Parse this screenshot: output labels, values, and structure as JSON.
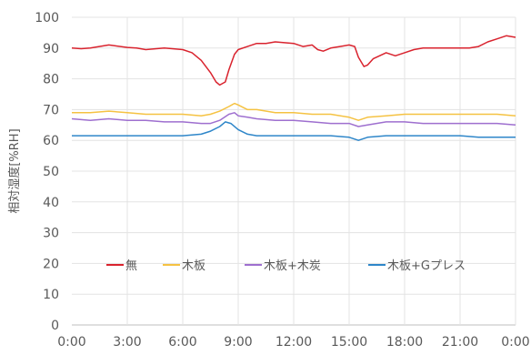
{
  "chart_data": {
    "type": "line",
    "title": "",
    "xlabel": "",
    "ylabel": "相対湿度[%RH]",
    "ylim": [
      0,
      100
    ],
    "yticks": [
      0,
      10,
      20,
      30,
      40,
      50,
      60,
      70,
      80,
      90,
      100
    ],
    "xlim": [
      0,
      24
    ],
    "xticks": [
      "0:00",
      "3:00",
      "6:00",
      "9:00",
      "12:00",
      "15:00",
      "18:00",
      "21:00",
      "0:00"
    ],
    "grid": "both",
    "legend_position": "inside-bottom",
    "series": [
      {
        "name": "無",
        "color": "#d9232e",
        "x": [
          0,
          0.5,
          1,
          2,
          3,
          3.5,
          4,
          5,
          6,
          6.5,
          7,
          7.5,
          7.8,
          8,
          8.3,
          8.5,
          8.8,
          9,
          9.5,
          10,
          10.5,
          11,
          12,
          12.5,
          13,
          13.3,
          13.6,
          14,
          14.5,
          15,
          15.3,
          15.5,
          15.8,
          16,
          16.3,
          17,
          17.5,
          18,
          18.5,
          19,
          20,
          21,
          21.5,
          22,
          22.5,
          23,
          23.5,
          24
        ],
        "values": [
          90,
          89.8,
          90,
          91,
          90.2,
          90,
          89.5,
          90,
          89.5,
          88.5,
          86,
          82,
          79,
          78,
          79,
          83,
          88,
          89.5,
          90.5,
          91.5,
          91.5,
          92,
          91.5,
          90.5,
          91,
          89.5,
          89,
          90,
          90.5,
          91,
          90.5,
          87,
          84,
          84.5,
          86.5,
          88.5,
          87.5,
          88.5,
          89.5,
          90,
          90,
          90,
          90,
          90.5,
          92,
          93,
          94,
          93.5
        ]
      },
      {
        "name": "木板",
        "color": "#f5c242",
        "x": [
          0,
          1,
          2,
          3,
          4,
          5,
          6,
          7,
          7.5,
          8,
          8.5,
          8.8,
          9,
          9.5,
          10,
          11,
          12,
          13,
          14,
          15,
          15.5,
          16,
          17,
          18,
          19,
          20,
          21,
          22,
          23,
          24
        ],
        "values": [
          69,
          69,
          69.5,
          69,
          68.5,
          68.5,
          68.5,
          68,
          68.5,
          69.5,
          71,
          72,
          71.5,
          70,
          70,
          69,
          69,
          68.5,
          68.5,
          67.5,
          66.5,
          67.5,
          68,
          68.5,
          68.5,
          68.5,
          68.5,
          68.5,
          68.5,
          68
        ]
      },
      {
        "name": "木板+木炭",
        "color": "#9e6fcf",
        "x": [
          0,
          1,
          2,
          3,
          4,
          5,
          6,
          7,
          7.5,
          8,
          8.5,
          8.8,
          9,
          9.5,
          10,
          11,
          12,
          13,
          14,
          15,
          15.5,
          16,
          17,
          18,
          19,
          20,
          21,
          22,
          23,
          24
        ],
        "values": [
          67,
          66.5,
          67,
          66.5,
          66.5,
          66,
          66,
          65.5,
          65.5,
          66.5,
          68.5,
          69,
          68,
          67.5,
          67,
          66.5,
          66.5,
          66,
          65.5,
          65.5,
          64.5,
          65,
          66,
          66,
          65.5,
          65.5,
          65.5,
          65.5,
          65.5,
          65
        ]
      },
      {
        "name": "木板+Gプレス",
        "color": "#2e86c9",
        "x": [
          0,
          1,
          2,
          3,
          4,
          5,
          6,
          7,
          7.5,
          8,
          8.3,
          8.6,
          9,
          9.5,
          10,
          11,
          12,
          13,
          14,
          15,
          15.5,
          16,
          17,
          18,
          19,
          20,
          21,
          22,
          23,
          24
        ],
        "values": [
          61.5,
          61.5,
          61.5,
          61.5,
          61.5,
          61.5,
          61.5,
          62,
          63,
          64.5,
          66,
          65.5,
          63.5,
          62,
          61.5,
          61.5,
          61.5,
          61.5,
          61.5,
          61,
          60,
          61,
          61.5,
          61.5,
          61.5,
          61.5,
          61.5,
          61,
          61,
          61
        ]
      }
    ]
  }
}
